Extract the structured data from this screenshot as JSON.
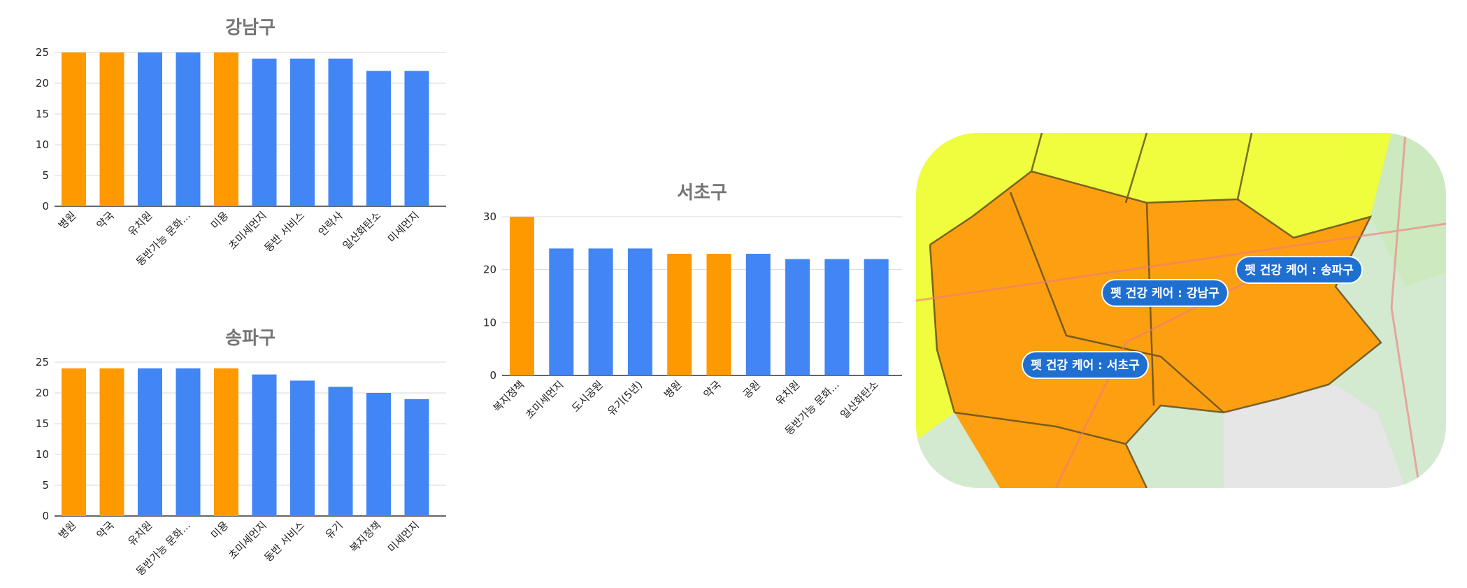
{
  "colors": {
    "highlight": "#FF9900",
    "normal": "#4285F4",
    "grid": "#D9D9D9",
    "title": "#757575"
  },
  "charts": [
    {
      "title": "강남구",
      "categories": [
        "병원",
        "약국",
        "유치원",
        "동반가능 문화...",
        "미용",
        "초미세먼지",
        "동반 서비스",
        "안락사",
        "일산화탄소",
        "미세먼지"
      ],
      "values": [
        25,
        25,
        25,
        25,
        25,
        24,
        24,
        24,
        22,
        22
      ],
      "highlighted": [
        true,
        true,
        false,
        false,
        true,
        false,
        false,
        false,
        false,
        false
      ],
      "ylim": [
        0,
        25
      ],
      "yticks": [
        "0",
        "5",
        "10",
        "15",
        "20",
        "25"
      ]
    },
    {
      "title": "송파구",
      "categories": [
        "병원",
        "약국",
        "유치원",
        "동반가능 문화...",
        "미용",
        "초미세먼지",
        "동반 서비스",
        "유기",
        "복지정책",
        "미세먼지"
      ],
      "values": [
        24,
        24,
        24,
        24,
        24,
        23,
        22,
        21,
        20,
        19
      ],
      "highlighted": [
        true,
        true,
        false,
        false,
        true,
        false,
        false,
        false,
        false,
        false
      ],
      "ylim": [
        0,
        25
      ],
      "yticks": [
        "0",
        "5",
        "10",
        "15",
        "20",
        "25"
      ]
    },
    {
      "title": "서초구",
      "categories": [
        "복지정책",
        "초미세먼지",
        "도시공원",
        "유기(5년)",
        "병원",
        "약국",
        "공원",
        "유치원",
        "동반가능 문화...",
        "일산화탄소"
      ],
      "values": [
        30,
        24,
        24,
        24,
        23,
        23,
        23,
        22,
        22,
        22
      ],
      "highlighted": [
        true,
        false,
        false,
        false,
        true,
        true,
        false,
        false,
        false,
        false
      ],
      "ylim": [
        0,
        30
      ],
      "yticks": [
        "0",
        "10",
        "20",
        "30"
      ]
    }
  ],
  "chart_data": [
    {
      "type": "bar",
      "title": "강남구",
      "categories": [
        "병원",
        "약국",
        "유치원",
        "동반가능 문화...",
        "미용",
        "초미세먼지",
        "동반 서비스",
        "안락사",
        "일산화탄소",
        "미세먼지"
      ],
      "values": [
        25,
        25,
        25,
        25,
        25,
        24,
        24,
        24,
        22,
        22
      ],
      "ylim": [
        0,
        25
      ],
      "grid": true
    },
    {
      "type": "bar",
      "title": "송파구",
      "categories": [
        "병원",
        "약국",
        "유치원",
        "동반가능 문화...",
        "미용",
        "초미세먼지",
        "동반 서비스",
        "유기",
        "복지정책",
        "미세먼지"
      ],
      "values": [
        24,
        24,
        24,
        24,
        24,
        23,
        22,
        21,
        20,
        19
      ],
      "ylim": [
        0,
        25
      ],
      "grid": true
    },
    {
      "type": "bar",
      "title": "서초구",
      "categories": [
        "복지정책",
        "초미세먼지",
        "도시공원",
        "유기(5년)",
        "병원",
        "약국",
        "공원",
        "유치원",
        "동반가능 문화...",
        "일산화탄소"
      ],
      "values": [
        30,
        24,
        24,
        24,
        23,
        23,
        23,
        22,
        22,
        22
      ],
      "ylim": [
        0,
        30
      ],
      "grid": true
    }
  ],
  "map": {
    "labels": {
      "gangnam": "펫 건강 케어 : 강남구",
      "songpa": "펫 건강 케어 : 송파구",
      "seocho": "펫 건강 케어 : 서초구"
    },
    "colors": {
      "district": "#FF9900",
      "surround": "#F2FF2E",
      "pill": "#1E6FD0"
    }
  }
}
